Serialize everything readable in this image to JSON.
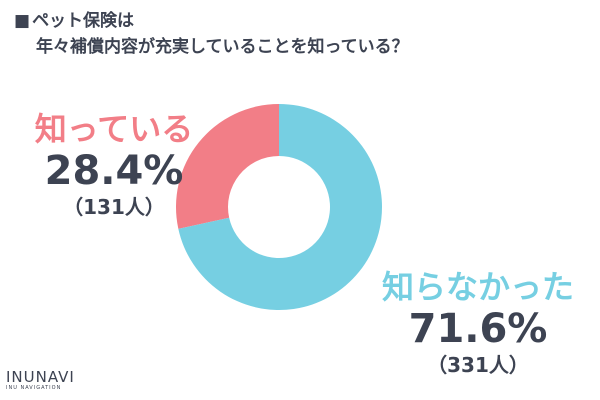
{
  "title": {
    "marker": "■",
    "line1": "ペット保険は",
    "line2": "年々補償内容が充実していることを知っている？"
  },
  "chart_data": {
    "type": "pie",
    "donut": true,
    "title": "ペット保険は 年々補償内容が充実していることを知っている？",
    "slices": [
      {
        "label": "知っている",
        "percent_label": "28.4%",
        "count_label": "（131人）",
        "value": 28.4,
        "count": 131,
        "color": "#f27e87"
      },
      {
        "label": "知らなかった",
        "percent_label": "71.6%",
        "count_label": "（331人）",
        "value": 71.6,
        "count": 331,
        "color": "#76cfe2"
      }
    ]
  },
  "brand": {
    "name": "INUNAVI",
    "sub": "INU NAVIGATION"
  }
}
